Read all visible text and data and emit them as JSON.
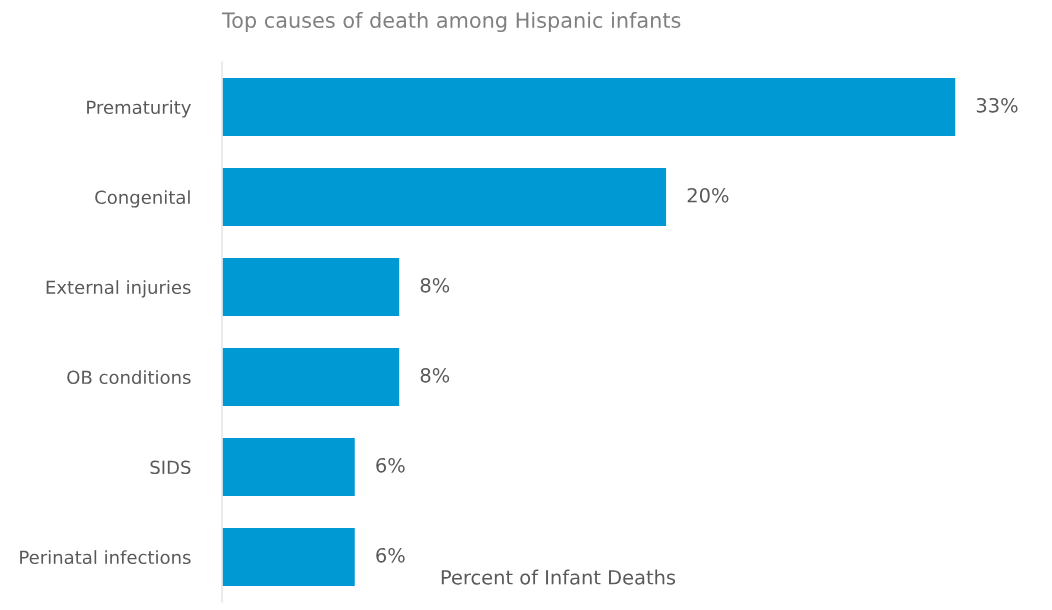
{
  "chart_data": {
    "type": "bar",
    "orientation": "horizontal",
    "title": "Top causes of death among Hispanic infants",
    "xlabel": "Percent of Infant Deaths",
    "categories": [
      "Prematurity",
      "Congenital",
      "External injuries",
      "OB conditions",
      "SIDS",
      "Perinatal infections"
    ],
    "values": [
      33,
      20,
      8,
      8,
      6,
      6
    ],
    "value_labels": [
      "33%",
      "20%",
      "8%",
      "8%",
      "6%",
      "6%"
    ],
    "color": "#0099d4",
    "grid": false,
    "legend": false
  }
}
